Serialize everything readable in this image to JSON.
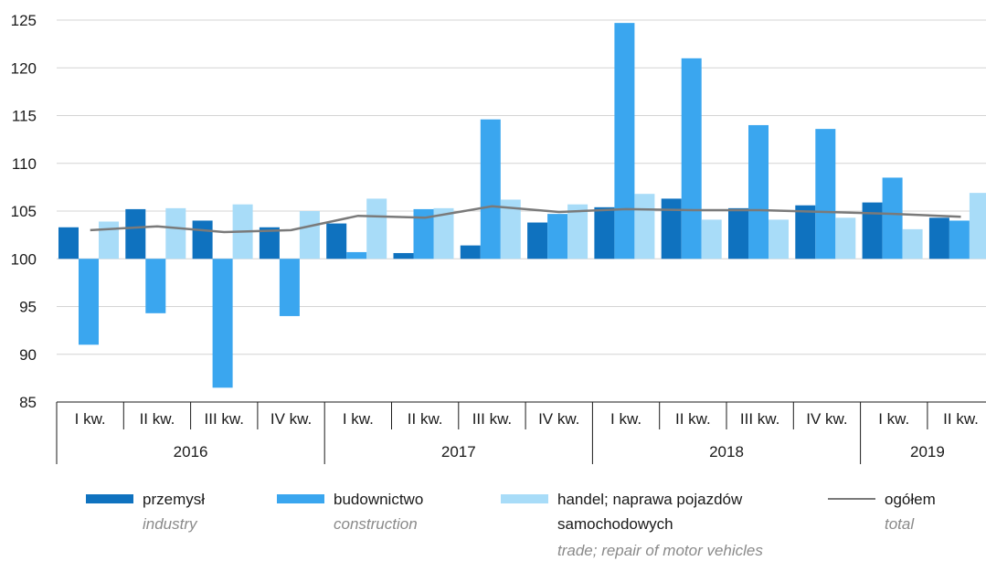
{
  "chart_data": {
    "type": "bar",
    "ylim": [
      85,
      125
    ],
    "yticks": [
      85,
      90,
      95,
      100,
      105,
      110,
      115,
      120,
      125
    ],
    "baseline": 100,
    "grid": true,
    "legend_position": "bottom",
    "quarters": [
      "I kw.",
      "II kw.",
      "III kw.",
      "IV kw.",
      "I kw.",
      "II kw.",
      "III kw.",
      "IV kw.",
      "I kw.",
      "II kw.",
      "III kw.",
      "IV kw.",
      "I kw.",
      "II kw."
    ],
    "years": [
      {
        "label": "2016",
        "quarters": 4
      },
      {
        "label": "2017",
        "quarters": 4
      },
      {
        "label": "2018",
        "quarters": 4
      },
      {
        "label": "2019",
        "quarters": 2
      }
    ],
    "series": [
      {
        "name": "przemysł",
        "name_en": "industry",
        "type": "bar",
        "color": "#0f72bf",
        "values": [
          103.3,
          105.2,
          104.0,
          103.3,
          103.7,
          100.6,
          101.4,
          103.8,
          105.4,
          106.3,
          105.3,
          105.6,
          105.9,
          104.3
        ]
      },
      {
        "name": "budownictwo",
        "name_en": "construction",
        "type": "bar",
        "color": "#3aa6ef",
        "values": [
          91.0,
          94.3,
          86.5,
          94.0,
          100.7,
          105.2,
          114.6,
          104.7,
          124.7,
          121.0,
          114.0,
          113.6,
          108.5,
          104.0
        ]
      },
      {
        "name": "handel; naprawa pojazdów samochodowych",
        "name_line1": "handel; naprawa pojazdów",
        "name_line2": "samochodowych",
        "name_en": "trade; repair of motor vehicles",
        "type": "bar",
        "color": "#a8dcf8",
        "values": [
          103.9,
          105.3,
          105.7,
          105.0,
          106.3,
          105.3,
          106.2,
          105.7,
          106.8,
          104.1,
          104.1,
          104.3,
          103.1,
          106.9
        ]
      },
      {
        "name": "ogółem",
        "name_en": "total",
        "type": "line",
        "color": "#7a7a7a",
        "values": [
          103.0,
          103.4,
          102.8,
          103.0,
          104.5,
          104.3,
          105.5,
          104.9,
          105.2,
          105.1,
          105.1,
          104.9,
          104.7,
          104.4
        ]
      }
    ]
  }
}
